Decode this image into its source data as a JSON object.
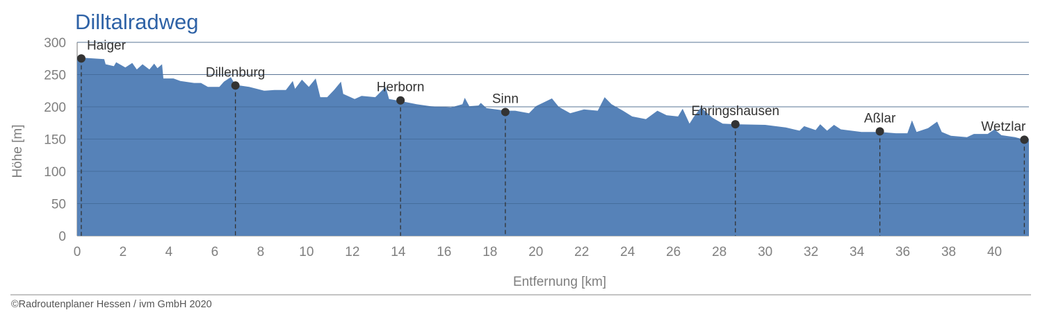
{
  "chart_data": {
    "type": "area",
    "title": "Dilltalradweg",
    "xlabel": "Entfernung [km]",
    "ylabel": "Höhe [m]",
    "xlim": [
      0,
      41.5
    ],
    "ylim": [
      0,
      300
    ],
    "x_ticks": [
      0,
      2,
      4,
      6,
      8,
      10,
      12,
      14,
      16,
      18,
      20,
      22,
      24,
      26,
      28,
      30,
      32,
      34,
      36,
      38,
      40
    ],
    "y_ticks": [
      0,
      50,
      100,
      150,
      200,
      250,
      300
    ],
    "grid": "horizontal",
    "colors": {
      "fill": "#5682b8",
      "title": "#2e62a6",
      "marker": "#333333",
      "axis_text": "#7f7f7f"
    },
    "profile": [
      [
        0,
        277
      ],
      [
        0.27,
        276
      ],
      [
        1.18,
        274
      ],
      [
        1.24,
        266
      ],
      [
        1.6,
        263
      ],
      [
        1.7,
        269
      ],
      [
        2.1,
        261
      ],
      [
        2.4,
        268
      ],
      [
        2.6,
        258
      ],
      [
        2.85,
        266
      ],
      [
        3.15,
        258
      ],
      [
        3.36,
        267
      ],
      [
        3.5,
        260
      ],
      [
        3.7,
        266
      ],
      [
        3.76,
        244
      ],
      [
        4.2,
        244
      ],
      [
        4.5,
        240
      ],
      [
        5.1,
        237
      ],
      [
        5.4,
        237
      ],
      [
        5.7,
        231
      ],
      [
        6.2,
        231
      ],
      [
        6.4,
        239
      ],
      [
        6.7,
        246
      ],
      [
        6.9,
        234
      ],
      [
        7.5,
        231
      ],
      [
        8.15,
        225
      ],
      [
        8.6,
        226
      ],
      [
        9.1,
        226
      ],
      [
        9.4,
        240
      ],
      [
        9.5,
        228
      ],
      [
        9.8,
        242
      ],
      [
        10.1,
        231
      ],
      [
        10.4,
        244
      ],
      [
        10.6,
        215
      ],
      [
        10.9,
        215
      ],
      [
        11.2,
        226
      ],
      [
        11.5,
        239
      ],
      [
        11.6,
        220
      ],
      [
        12.1,
        212
      ],
      [
        12.4,
        217
      ],
      [
        13.0,
        215
      ],
      [
        13.45,
        231
      ],
      [
        13.6,
        212
      ],
      [
        14.1,
        209
      ],
      [
        14.8,
        204
      ],
      [
        15.4,
        201
      ],
      [
        16.3,
        199
      ],
      [
        16.8,
        204
      ],
      [
        16.9,
        214
      ],
      [
        17.1,
        201
      ],
      [
        17.5,
        202
      ],
      [
        17.6,
        206
      ],
      [
        17.85,
        198
      ],
      [
        18.7,
        194
      ],
      [
        19.1,
        194
      ],
      [
        19.7,
        190
      ],
      [
        20.0,
        201
      ],
      [
        20.7,
        213
      ],
      [
        21.0,
        200
      ],
      [
        21.5,
        190
      ],
      [
        22.1,
        196
      ],
      [
        22.7,
        194
      ],
      [
        23.0,
        215
      ],
      [
        23.3,
        204
      ],
      [
        23.8,
        194
      ],
      [
        24.2,
        185
      ],
      [
        24.8,
        181
      ],
      [
        25.3,
        194
      ],
      [
        25.7,
        187
      ],
      [
        26.2,
        185
      ],
      [
        26.4,
        197
      ],
      [
        26.7,
        174
      ],
      [
        26.9,
        185
      ],
      [
        27.2,
        199
      ],
      [
        27.7,
        183
      ],
      [
        28.15,
        174
      ],
      [
        28.7,
        173
      ],
      [
        30.0,
        172
      ],
      [
        30.9,
        168
      ],
      [
        31.5,
        163
      ],
      [
        31.7,
        170
      ],
      [
        32.2,
        164
      ],
      [
        32.4,
        173
      ],
      [
        32.7,
        163
      ],
      [
        33.0,
        172
      ],
      [
        33.3,
        165
      ],
      [
        34.2,
        161
      ],
      [
        35.0,
        161
      ],
      [
        35.7,
        159
      ],
      [
        36.2,
        159
      ],
      [
        36.4,
        179
      ],
      [
        36.6,
        161
      ],
      [
        37.1,
        167
      ],
      [
        37.5,
        177
      ],
      [
        37.7,
        161
      ],
      [
        38.1,
        155
      ],
      [
        38.8,
        153
      ],
      [
        39.1,
        158
      ],
      [
        39.7,
        158
      ],
      [
        40.0,
        165
      ],
      [
        40.3,
        156
      ],
      [
        40.9,
        153
      ],
      [
        41.3,
        149
      ],
      [
        41.5,
        149
      ]
    ],
    "places": [
      {
        "name": "Haiger",
        "km": 0.18,
        "elev": 275
      },
      {
        "name": "Dillenburg",
        "km": 6.9,
        "elev": 233
      },
      {
        "name": "Herborn",
        "km": 14.1,
        "elev": 210
      },
      {
        "name": "Sinn",
        "km": 18.67,
        "elev": 192
      },
      {
        "name": "Ehringshausen",
        "km": 28.7,
        "elev": 173
      },
      {
        "name": "Aßlar",
        "km": 35.0,
        "elev": 162
      },
      {
        "name": "Wetzlar",
        "km": 41.3,
        "elev": 149
      }
    ]
  },
  "footer": {
    "copyright": "©Radroutenplaner Hessen / ivm GmbH 2020"
  }
}
